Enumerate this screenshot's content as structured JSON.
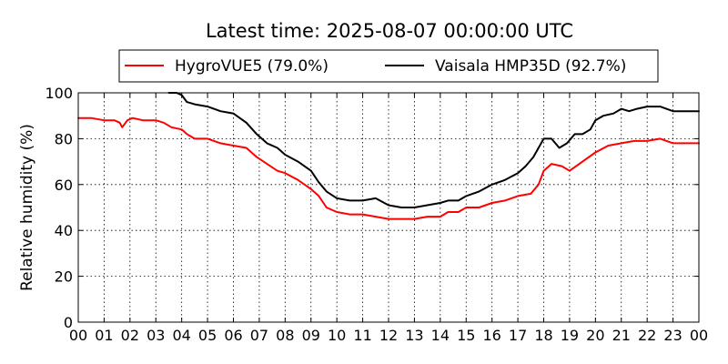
{
  "chart_data": {
    "type": "line",
    "title": "Latest time: 2025-08-07 00:00:00 UTC",
    "xlabel": "",
    "ylabel": "Relative humidity (%)",
    "xlim": [
      0,
      24
    ],
    "ylim": [
      0,
      100
    ],
    "grid": true,
    "legend": {
      "placement": "top-center",
      "entries": [
        "HygroVUE5 (79.0%)",
        "Vaisala HMP35D (92.7%)"
      ]
    },
    "x_ticks": [
      0,
      1,
      2,
      3,
      4,
      5,
      6,
      7,
      8,
      9,
      10,
      11,
      12,
      13,
      14,
      15,
      16,
      17,
      18,
      19,
      20,
      21,
      22,
      23,
      24
    ],
    "x_tick_labels": [
      "00",
      "01",
      "02",
      "03",
      "04",
      "05",
      "06",
      "07",
      "08",
      "09",
      "10",
      "11",
      "12",
      "13",
      "14",
      "15",
      "16",
      "17",
      "18",
      "19",
      "20",
      "21",
      "22",
      "23",
      "00"
    ],
    "y_ticks": [
      0,
      20,
      40,
      60,
      80,
      100
    ],
    "y_tick_labels": [
      "0",
      "20",
      "40",
      "60",
      "80",
      "100"
    ],
    "series": [
      {
        "name": "HygroVUE5 (79.0%)",
        "color": "#ff0000",
        "x": [
          0,
          0.5,
          1,
          1.4,
          1.6,
          1.7,
          1.9,
          2.1,
          2.5,
          3,
          3.3,
          3.6,
          4,
          4.2,
          4.5,
          5,
          5.5,
          6,
          6.5,
          6.9,
          7.3,
          7.7,
          8,
          8.5,
          9,
          9.3,
          9.6,
          10,
          10.5,
          11,
          11.5,
          12,
          12.5,
          13,
          13.5,
          14,
          14.3,
          14.7,
          15,
          15.5,
          16,
          16.5,
          17,
          17.5,
          17.8,
          18,
          18.3,
          18.7,
          19,
          19.5,
          20,
          20.5,
          21,
          21.5,
          22,
          22.5,
          23,
          23.5,
          24
        ],
        "y": [
          89,
          89,
          88,
          88,
          87,
          85,
          88,
          89,
          88,
          88,
          87,
          85,
          84,
          82,
          80,
          80,
          78,
          77,
          76,
          72,
          69,
          66,
          65,
          62,
          58,
          55,
          50,
          48,
          47,
          47,
          46,
          45,
          45,
          45,
          46,
          46,
          48,
          48,
          50,
          50,
          52,
          53,
          55,
          56,
          60,
          66,
          69,
          68,
          66,
          70,
          74,
          77,
          78,
          79,
          79,
          80,
          78,
          78,
          78
        ]
      },
      {
        "name": "Vaisala HMP35D (92.7%)",
        "color": "#000000",
        "x": [
          3.5,
          3.8,
          4,
          4.2,
          4.5,
          5,
          5.5,
          6,
          6.5,
          6.9,
          7.3,
          7.7,
          8,
          8.5,
          9,
          9.3,
          9.6,
          10,
          10.5,
          11,
          11.5,
          12,
          12.5,
          13,
          13.5,
          14,
          14.3,
          14.7,
          15,
          15.5,
          16,
          16.5,
          17,
          17.3,
          17.6,
          17.8,
          18,
          18.3,
          18.6,
          18.9,
          19.2,
          19.5,
          19.8,
          20,
          20.3,
          20.7,
          21,
          21.3,
          21.6,
          22,
          22.5,
          23,
          23.5,
          24
        ],
        "y": [
          100,
          100,
          99,
          96,
          95,
          94,
          92,
          91,
          87,
          82,
          78,
          76,
          73,
          70,
          66,
          61,
          57,
          54,
          53,
          53,
          54,
          51,
          50,
          50,
          51,
          52,
          53,
          53,
          55,
          57,
          60,
          62,
          65,
          68,
          72,
          76,
          80,
          80,
          76,
          78,
          82,
          82,
          84,
          88,
          90,
          91,
          93,
          92,
          93,
          94,
          94,
          92,
          92,
          92
        ]
      }
    ]
  }
}
